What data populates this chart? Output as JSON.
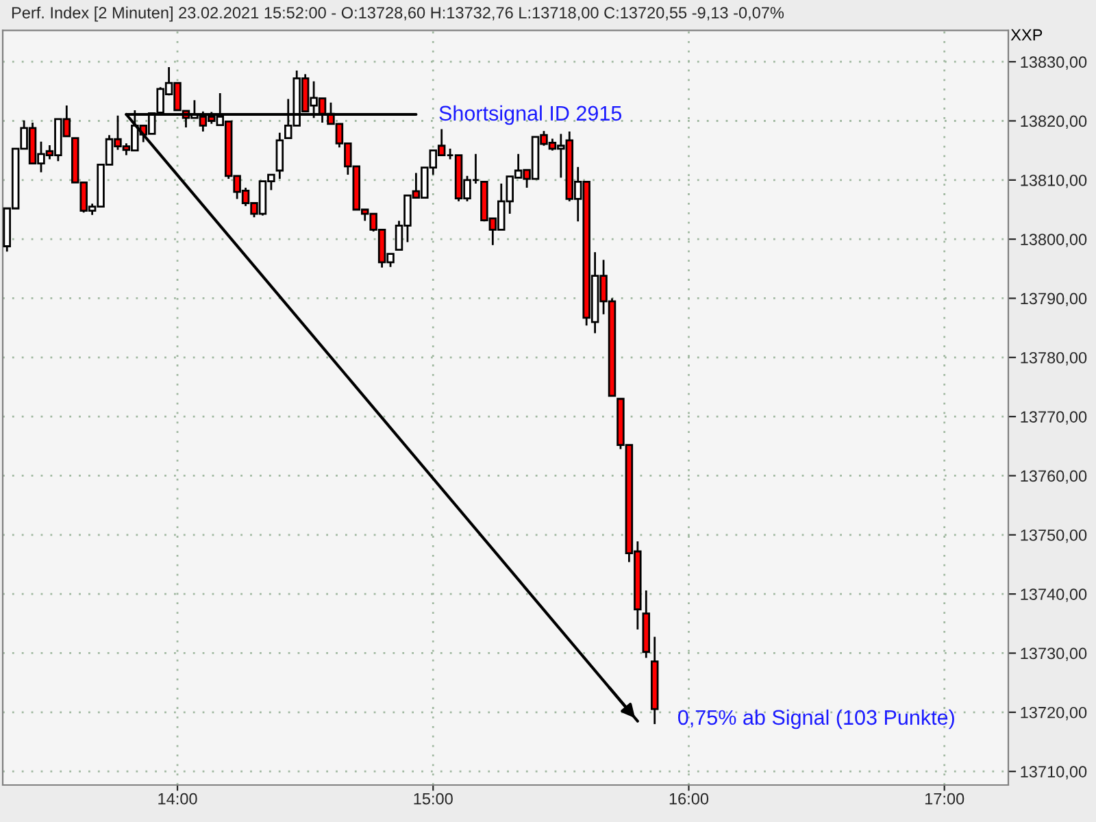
{
  "chart_data": {
    "type": "candlestick",
    "title": "Perf. Index [2 Minuten] 23.02.2021 15:52:00 - O:13728,60 H:13732,76 L:13718,00 C:13720,55 -9,13 -0,07%",
    "x": [
      "2021-02-23T13:20",
      "2021-02-23T13:22",
      "2021-02-23T13:24",
      "2021-02-23T13:26",
      "2021-02-23T13:28",
      "2021-02-23T13:30",
      "2021-02-23T13:32",
      "2021-02-23T13:34",
      "2021-02-23T13:36",
      "2021-02-23T13:38",
      "2021-02-23T13:40",
      "2021-02-23T13:42",
      "2021-02-23T13:44",
      "2021-02-23T13:46",
      "2021-02-23T13:48",
      "2021-02-23T13:50",
      "2021-02-23T13:52",
      "2021-02-23T13:54",
      "2021-02-23T13:56",
      "2021-02-23T13:58",
      "2021-02-23T14:00",
      "2021-02-23T14:02",
      "2021-02-23T14:04",
      "2021-02-23T14:06",
      "2021-02-23T14:08",
      "2021-02-23T14:10",
      "2021-02-23T14:12",
      "2021-02-23T14:14",
      "2021-02-23T14:16",
      "2021-02-23T14:18",
      "2021-02-23T14:20",
      "2021-02-23T14:22",
      "2021-02-23T14:24",
      "2021-02-23T14:26",
      "2021-02-23T14:28",
      "2021-02-23T14:30",
      "2021-02-23T14:32",
      "2021-02-23T14:34",
      "2021-02-23T14:36",
      "2021-02-23T14:38",
      "2021-02-23T14:40",
      "2021-02-23T14:42",
      "2021-02-23T14:44",
      "2021-02-23T14:46",
      "2021-02-23T14:48",
      "2021-02-23T14:50",
      "2021-02-23T14:52",
      "2021-02-23T14:54",
      "2021-02-23T14:56",
      "2021-02-23T14:58",
      "2021-02-23T15:00",
      "2021-02-23T15:02",
      "2021-02-23T15:04",
      "2021-02-23T15:06",
      "2021-02-23T15:08",
      "2021-02-23T15:10",
      "2021-02-23T15:12",
      "2021-02-23T15:14",
      "2021-02-23T15:16",
      "2021-02-23T15:18",
      "2021-02-23T15:20",
      "2021-02-23T15:22",
      "2021-02-23T15:24",
      "2021-02-23T15:26",
      "2021-02-23T15:28",
      "2021-02-23T15:30",
      "2021-02-23T15:32",
      "2021-02-23T15:34",
      "2021-02-23T15:36",
      "2021-02-23T15:38",
      "2021-02-23T15:40",
      "2021-02-23T15:42",
      "2021-02-23T15:44",
      "2021-02-23T15:46",
      "2021-02-23T15:48",
      "2021-02-23T15:50",
      "2021-02-23T15:52"
    ],
    "ohlc": [
      [
        13798.8,
        13805.2,
        13797.9,
        13805.2
      ],
      [
        13805.2,
        13815.3,
        13805.2,
        13815.3
      ],
      [
        13815.3,
        13820.1,
        13815.3,
        13818.8
      ],
      [
        13818.8,
        13819.7,
        13812.8,
        13812.8
      ],
      [
        13812.8,
        13816.5,
        13811.3,
        13814.4
      ],
      [
        13814.9,
        13815.9,
        13813.5,
        13814.2
      ],
      [
        13814.2,
        13820.3,
        13813.2,
        13820.3
      ],
      [
        13820.3,
        13822.6,
        13817.4,
        13817.4
      ],
      [
        13817.1,
        13817.1,
        13809.6,
        13809.6
      ],
      [
        13809.6,
        13809.6,
        13804.5,
        13804.8
      ],
      [
        13804.8,
        13806.0,
        13804.1,
        13805.5
      ],
      [
        13805.5,
        13812.6,
        13805.5,
        13812.6
      ],
      [
        13812.6,
        13817.6,
        13812.6,
        13816.9
      ],
      [
        13816.9,
        13820.9,
        13815.1,
        13815.7
      ],
      [
        13815.7,
        13816.2,
        13814.2,
        13815.1
      ],
      [
        13815.0,
        13821.8,
        13815.0,
        13819.2
      ],
      [
        13819.2,
        13819.2,
        13816.4,
        13817.7
      ],
      [
        13817.8,
        13821.3,
        13817.8,
        13821.3
      ],
      [
        13821.4,
        13825.7,
        13821.4,
        13825.4
      ],
      [
        13824.5,
        13829.1,
        13824.3,
        13826.4
      ],
      [
        13826.4,
        13826.4,
        13821.8,
        13821.8
      ],
      [
        13821.7,
        13821.7,
        13818.9,
        13820.5
      ],
      [
        13820.5,
        13823.5,
        13820.5,
        13821.1
      ],
      [
        13820.7,
        13821.6,
        13818.2,
        13819.2
      ],
      [
        13820.7,
        13821.5,
        13819.5,
        13820.0
      ],
      [
        13819.3,
        13824.7,
        13819.3,
        13820.7
      ],
      [
        13819.9,
        13819.9,
        13810.2,
        13810.7
      ],
      [
        13810.7,
        13810.7,
        13806.8,
        13808.0
      ],
      [
        13808.2,
        13808.7,
        13805.6,
        13806.1
      ],
      [
        13806.1,
        13806.1,
        13803.7,
        13804.3
      ],
      [
        13804.3,
        13809.8,
        13804.0,
        13809.8
      ],
      [
        13809.8,
        13810.9,
        13808.3,
        13810.9
      ],
      [
        13811.6,
        13818.0,
        13810.2,
        13816.7
      ],
      [
        13817.1,
        13823.7,
        13817.1,
        13819.2
      ],
      [
        13819.2,
        13828.5,
        13819.2,
        13827.2
      ],
      [
        13827.2,
        13827.9,
        13821.6,
        13821.6
      ],
      [
        13822.6,
        13826.7,
        13820.5,
        13823.9
      ],
      [
        13823.8,
        13823.8,
        13819.7,
        13821.2
      ],
      [
        13821.2,
        13823.1,
        13819.5,
        13819.5
      ],
      [
        13819.5,
        13819.5,
        13815.5,
        13816.2
      ],
      [
        13816.2,
        13816.2,
        13810.9,
        13812.3
      ],
      [
        13812.3,
        13812.3,
        13805.0,
        13805.0
      ],
      [
        13805.0,
        13805.0,
        13803.1,
        13804.3
      ],
      [
        13804.3,
        13804.3,
        13801.3,
        13801.6
      ],
      [
        13801.6,
        13801.6,
        13795.2,
        13796.1
      ],
      [
        13796.1,
        13797.5,
        13795.3,
        13797.5
      ],
      [
        13798.2,
        13803.1,
        13798.2,
        13802.3
      ],
      [
        13802.3,
        13807.4,
        13799.5,
        13807.4
      ],
      [
        13808.1,
        13811.2,
        13807.0,
        13807.0
      ],
      [
        13807.0,
        13812.1,
        13807.0,
        13812.1
      ],
      [
        13812.1,
        13815.0,
        13810.9,
        13815.0
      ],
      [
        13815.8,
        13818.6,
        13814.2,
        13814.2
      ],
      [
        13814.2,
        13815.3,
        13813.5,
        13814.2
      ],
      [
        13814.2,
        13814.2,
        13806.4,
        13806.9
      ],
      [
        13806.9,
        13810.7,
        13806.4,
        13810.0
      ],
      [
        13810.0,
        13814.4,
        13809.4,
        13810.0
      ],
      [
        13809.7,
        13809.7,
        13803.0,
        13803.2
      ],
      [
        13803.5,
        13803.5,
        13799.0,
        13801.6
      ],
      [
        13801.6,
        13809.4,
        13801.6,
        13806.4
      ],
      [
        13806.4,
        13810.6,
        13804.3,
        13810.6
      ],
      [
        13810.4,
        13814.4,
        13810.4,
        13811.6
      ],
      [
        13811.7,
        13811.7,
        13808.7,
        13810.2
      ],
      [
        13810.2,
        13817.3,
        13810.2,
        13817.3
      ],
      [
        13817.6,
        13818.3,
        13815.8,
        13816.1
      ],
      [
        13816.3,
        13817.0,
        13815.0,
        13815.3
      ],
      [
        13815.3,
        13817.8,
        13810.4,
        13815.8
      ],
      [
        13816.7,
        13818.2,
        13806.4,
        13806.8
      ],
      [
        13806.8,
        13812.2,
        13803.0,
        13809.7
      ],
      [
        13809.7,
        13809.7,
        13785.4,
        13786.7
      ],
      [
        13786.0,
        13797.8,
        13784.1,
        13793.8
      ],
      [
        13793.8,
        13796.5,
        13787.3,
        13789.5
      ],
      [
        13789.5,
        13790.0,
        13773.5,
        13773.5
      ],
      [
        13773.0,
        13773.0,
        13764.5,
        13765.2
      ],
      [
        13765.2,
        13765.2,
        13745.4,
        13746.9
      ],
      [
        13747.2,
        13748.9,
        13734.0,
        13737.4
      ],
      [
        13736.7,
        13740.6,
        13729.2,
        13730.2
      ],
      [
        13728.6,
        13732.76,
        13718.0,
        13720.55
      ]
    ],
    "colors": [
      "#ffffff",
      "#ffffff",
      "#ffffff",
      "#ff0000",
      "#ffffff",
      "#ff0000",
      "#ffffff",
      "#ff0000",
      "#ff0000",
      "#ff0000",
      "#ffffff",
      "#ffffff",
      "#ffffff",
      "#ff0000",
      "#ff0000",
      "#ffffff",
      "#ff0000",
      "#ffffff",
      "#ffffff",
      "#ffffff",
      "#ff0000",
      "#ff0000",
      "#ffffff",
      "#ff0000",
      "#ff0000",
      "#ffffff",
      "#ff0000",
      "#ff0000",
      "#ff0000",
      "#ff0000",
      "#ffffff",
      "#ffffff",
      "#ffffff",
      "#ffffff",
      "#ffffff",
      "#ff0000",
      "#ffffff",
      "#ff0000",
      "#ff0000",
      "#ff0000",
      "#ff0000",
      "#ff0000",
      "#ff0000",
      "#ff0000",
      "#ff0000",
      "#ffffff",
      "#ffffff",
      "#ffffff",
      "#ff0000",
      "#ffffff",
      "#ffffff",
      "#ff0000",
      "#000000",
      "#ff0000",
      "#ffffff",
      "#000000",
      "#ff0000",
      "#ff0000",
      "#ffffff",
      "#ffffff",
      "#ffffff",
      "#ff0000",
      "#ffffff",
      "#ff0000",
      "#ff0000",
      "#ffffff",
      "#ff0000",
      "#ffffff",
      "#ff0000",
      "#ffffff",
      "#ff0000",
      "#ff0000",
      "#ff0000",
      "#ff0000",
      "#ff0000",
      "#ff0000",
      "#ff0000"
    ],
    "series": [
      {
        "type": "line",
        "color": "#000000",
        "x": [
          "2021-02-23T13:48",
          "2021-02-23T14:56"
        ],
        "values": [
          13821.1,
          13821.1
        ]
      },
      {
        "type": "line",
        "color": "#000000",
        "x": [
          "2021-02-23T13:48",
          "2021-02-23T15:48"
        ],
        "values": [
          13821.1,
          13718.5
        ]
      }
    ],
    "annotations": [
      "XXP",
      "Shortsignal ID 2915",
      "0,75% ab Signal (103 Punkte)"
    ],
    "xlim": [
      "2021-02-23T13:19",
      "2021-02-23T17:15"
    ],
    "xticks": [
      {
        "value": "2021-02-23T14:00",
        "label": "14:00"
      },
      {
        "value": "2021-02-23T15:00",
        "label": "15:00"
      },
      {
        "value": "2021-02-23T16:00",
        "label": "16:00"
      },
      {
        "value": "2021-02-23T17:00",
        "label": "17:00"
      }
    ],
    "ylim": [
      13707.7,
      13835.3
    ],
    "yticks": [
      {
        "value": 13710,
        "label": "13710,00"
      },
      {
        "value": 13720,
        "label": "13720,00"
      },
      {
        "value": 13730,
        "label": "13730,00"
      },
      {
        "value": 13740,
        "label": "13740,00"
      },
      {
        "value": 13750,
        "label": "13750,00"
      },
      {
        "value": 13760,
        "label": "13760,00"
      },
      {
        "value": 13770,
        "label": "13770,00"
      },
      {
        "value": 13780,
        "label": "13780,00"
      },
      {
        "value": 13790,
        "label": "13790,00"
      },
      {
        "value": 13800,
        "label": "13800,00"
      },
      {
        "value": 13810,
        "label": "13810,00"
      },
      {
        "value": 13820,
        "label": "13820,00"
      },
      {
        "value": 13830,
        "label": "13830,00"
      }
    ],
    "grid": true
  }
}
